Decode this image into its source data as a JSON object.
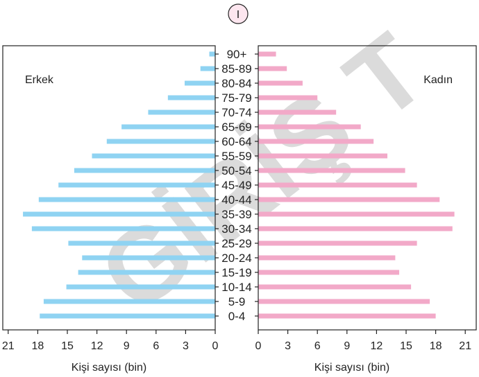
{
  "panel_label": "I",
  "watermark": "GİRİŞ T",
  "chart_data": {
    "type": "bar",
    "orientation": "horizontal",
    "layout": "population-pyramid",
    "categories": [
      "90+",
      "85-89",
      "80-84",
      "75-79",
      "70-74",
      "65-69",
      "60-64",
      "55-59",
      "50-54",
      "45-49",
      "40-44",
      "35-39",
      "30-34",
      "25-29",
      "20-24",
      "15-19",
      "10-14",
      "5-9",
      "0-4"
    ],
    "series": [
      {
        "name": "Erkek",
        "side": "left",
        "color": "#8fd3f2",
        "values": [
          0.6,
          1.5,
          3.1,
          4.8,
          6.8,
          9.5,
          11.0,
          12.5,
          14.3,
          15.9,
          17.9,
          19.5,
          18.6,
          14.9,
          13.5,
          13.9,
          15.1,
          17.4,
          17.8
        ]
      },
      {
        "name": "Kadın",
        "side": "right",
        "color": "#f2a9c8",
        "values": [
          1.8,
          2.9,
          4.5,
          6.0,
          7.9,
          10.4,
          11.7,
          13.1,
          14.9,
          16.1,
          18.4,
          19.9,
          19.7,
          16.1,
          13.9,
          14.3,
          15.5,
          17.4,
          18.0
        ]
      }
    ],
    "left_axis": {
      "ticks": [
        "21",
        "18",
        "15",
        "12",
        "9",
        "6",
        "3",
        "0"
      ],
      "xlim": [
        0,
        21
      ],
      "xlabel": "Kişi sayısı (bin)"
    },
    "right_axis": {
      "ticks": [
        "0",
        "3",
        "6",
        "9",
        "12",
        "15",
        "18",
        "21"
      ],
      "xlim": [
        0,
        21
      ],
      "xlabel": "Kişi sayısı (bin)"
    },
    "legend_left": "Erkek",
    "legend_right": "Kadın"
  }
}
